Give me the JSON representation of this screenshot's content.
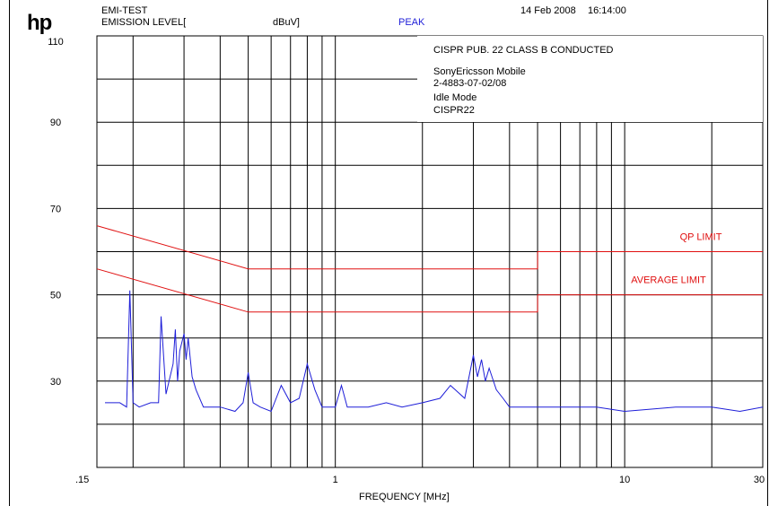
{
  "header": {
    "logo": "hp",
    "test_name": "EMI-TEST",
    "emission_label": "EMISSION LEVEL[",
    "unit_label": "dBuV]",
    "detector": "PEAK",
    "date": "14 Feb 2008",
    "time": "16:14:00"
  },
  "info": {
    "standard": "CISPR PUB. 22 CLASS B CONDUCTED",
    "lines": [
      "SonyEricsson Mobile",
      "2-4883-07-02/08",
      "Idle Mode",
      "CISPR22"
    ]
  },
  "colors": {
    "trace": "#1f1fd8",
    "limit": "#e01010",
    "grid": "#000000"
  },
  "chart_data": {
    "type": "line",
    "title": "",
    "xlabel": "FREQUENCY [MHz]",
    "ylabel": "EMISSION LEVEL[ dBuV]",
    "x_scale": "log",
    "xlim": [
      0.15,
      30
    ],
    "ylim": [
      10,
      110
    ],
    "x_tick_labels": [
      {
        "value": 0.15,
        "label": ".15"
      },
      {
        "value": 1,
        "label": "1"
      },
      {
        "value": 10,
        "label": "10"
      },
      {
        "value": 30,
        "label": "30"
      }
    ],
    "y_tick_labels": [
      {
        "value": 110,
        "label": "110"
      },
      {
        "value": 90,
        "label": "90"
      },
      {
        "value": 70,
        "label": "70"
      },
      {
        "value": 50,
        "label": "50"
      },
      {
        "value": 30,
        "label": "30"
      }
    ],
    "grid": true,
    "series": [
      {
        "name": "QP LIMIT",
        "x": [
          0.15,
          0.5,
          5,
          5,
          30
        ],
        "y": [
          66,
          56,
          56,
          60,
          60
        ]
      },
      {
        "name": "AVERAGE LIMIT",
        "x": [
          0.15,
          0.5,
          5,
          5,
          30
        ],
        "y": [
          56,
          46,
          46,
          50,
          50
        ]
      },
      {
        "name": "PEAK",
        "x": [
          0.16,
          0.18,
          0.19,
          0.195,
          0.2,
          0.21,
          0.23,
          0.245,
          0.25,
          0.26,
          0.275,
          0.28,
          0.285,
          0.29,
          0.3,
          0.305,
          0.31,
          0.32,
          0.33,
          0.35,
          0.4,
          0.45,
          0.48,
          0.5,
          0.52,
          0.55,
          0.6,
          0.65,
          0.7,
          0.75,
          0.8,
          0.85,
          0.9,
          1.0,
          1.05,
          1.1,
          1.3,
          1.5,
          1.7,
          2.0,
          2.3,
          2.5,
          2.8,
          3.0,
          3.1,
          3.2,
          3.3,
          3.4,
          3.6,
          3.8,
          4.0,
          4.5,
          5,
          6,
          8,
          10,
          15,
          20,
          25,
          30
        ],
        "y": [
          25,
          25,
          24,
          51,
          25,
          24,
          25,
          25,
          45,
          27,
          34,
          42,
          30,
          37,
          41,
          35,
          40,
          31,
          28,
          24,
          24,
          23,
          25,
          32,
          25,
          24,
          23,
          29,
          25,
          26,
          34,
          28,
          24,
          24,
          29,
          24,
          24,
          25,
          24,
          25,
          26,
          29,
          26,
          36,
          31,
          35,
          30,
          33,
          28,
          26,
          24,
          24,
          24,
          24,
          24,
          23,
          24,
          24,
          23,
          24
        ]
      }
    ]
  }
}
